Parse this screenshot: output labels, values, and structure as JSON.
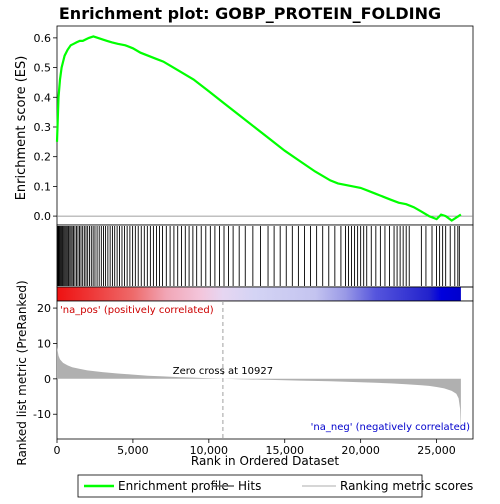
{
  "chart_data": {
    "type": "line",
    "title": "Enrichment plot: GOBP_PROTEIN_FOLDING",
    "es_panel": {
      "ylabel": "Enrichment score (ES)",
      "ylim": [
        -0.03,
        0.64
      ],
      "yticks": [
        0.0,
        0.1,
        0.2,
        0.3,
        0.4,
        0.5,
        0.6
      ],
      "ytick_labels": [
        "0.0",
        "0.1",
        "0.2",
        "0.3",
        "0.4",
        "0.5",
        "0.6"
      ],
      "series": [
        {
          "name": "Enrichment profile",
          "color": "#00ff00",
          "x": [
            0,
            50,
            100,
            200,
            300,
            400,
            500,
            700,
            900,
            1100,
            1300,
            1500,
            1700,
            1900,
            2100,
            2400,
            2700,
            3000,
            3300,
            3600,
            4000,
            4500,
            5000,
            5500,
            6000,
            6500,
            7000,
            7500,
            8000,
            9000,
            10000,
            11000,
            12000,
            13000,
            14000,
            15000,
            16000,
            17000,
            18000,
            18500,
            19000,
            19500,
            20000,
            20500,
            21000,
            21500,
            22000,
            22500,
            23000,
            23500,
            24000,
            24500,
            25000,
            25300,
            25600,
            26000,
            26300,
            26600
          ],
          "y": [
            0.25,
            0.33,
            0.4,
            0.46,
            0.5,
            0.52,
            0.54,
            0.56,
            0.575,
            0.58,
            0.585,
            0.59,
            0.59,
            0.595,
            0.6,
            0.605,
            0.6,
            0.595,
            0.59,
            0.585,
            0.58,
            0.575,
            0.565,
            0.55,
            0.54,
            0.53,
            0.52,
            0.505,
            0.49,
            0.46,
            0.42,
            0.38,
            0.34,
            0.3,
            0.26,
            0.22,
            0.185,
            0.15,
            0.12,
            0.11,
            0.105,
            0.1,
            0.095,
            0.085,
            0.075,
            0.065,
            0.055,
            0.045,
            0.04,
            0.03,
            0.015,
            0.0,
            -0.01,
            0.005,
            0.0,
            -0.015,
            -0.005,
            0.005
          ]
        }
      ]
    },
    "hits_panel": {
      "hit_color": "#000000",
      "hit_positions": [
        40,
        80,
        120,
        170,
        220,
        280,
        340,
        400,
        470,
        540,
        610,
        680,
        760,
        840,
        920,
        1000,
        1090,
        1180,
        1280,
        1380,
        1480,
        1580,
        1690,
        1800,
        1910,
        2020,
        2140,
        2260,
        2380,
        2500,
        2640,
        2780,
        2920,
        3060,
        3200,
        3350,
        3500,
        3650,
        3800,
        3960,
        4120,
        4280,
        4450,
        4620,
        4800,
        4980,
        5160,
        5350,
        5550,
        5750,
        5950,
        6150,
        6350,
        6550,
        6750,
        6950,
        7200,
        7450,
        7700,
        7950,
        8200,
        8450,
        8700,
        8950,
        9200,
        9500,
        9800,
        10100,
        10400,
        10700,
        11000,
        11300,
        11600,
        12000,
        12400,
        12900,
        13400,
        13900,
        14300,
        14700,
        15100,
        15500,
        15900,
        16300,
        16700,
        17100,
        17500,
        17900,
        18300,
        18700,
        19000,
        19200,
        19400,
        19600,
        19800,
        20000,
        20200,
        20400,
        20700,
        21000,
        21300,
        21600,
        21900,
        22200,
        22400,
        22600,
        22800,
        23000,
        23200,
        24000,
        24300,
        24700,
        25000,
        25200,
        25400,
        25600,
        25900,
        26200,
        26400,
        26500
      ]
    },
    "rank_panel": {
      "ylabel": "Ranked list metric (PreRanked)",
      "ylim": [
        -17,
        22
      ],
      "yticks": [
        -10,
        0,
        10,
        20
      ],
      "ytick_labels": [
        "-10",
        "0",
        "10",
        "20"
      ],
      "fill_color": "#b0b0b0",
      "x": [
        0,
        100,
        200,
        400,
        700,
        1000,
        1500,
        2000,
        3000,
        4000,
        5000,
        6000,
        7000,
        8000,
        9000,
        10000,
        10927,
        12000,
        14000,
        16000,
        18000,
        19000,
        20000,
        21000,
        22000,
        23000,
        24000,
        24500,
        25000,
        25500,
        26000,
        26300,
        26450,
        26550,
        26600
      ],
      "y": [
        9.0,
        6.5,
        5.5,
        4.5,
        3.8,
        3.3,
        2.8,
        2.4,
        1.9,
        1.5,
        1.2,
        0.9,
        0.7,
        0.5,
        0.35,
        0.15,
        0.0,
        -0.1,
        -0.3,
        -0.5,
        -0.7,
        -0.8,
        -0.95,
        -1.1,
        -1.3,
        -1.5,
        -1.8,
        -2.0,
        -2.3,
        -2.7,
        -3.4,
        -4.2,
        -5.5,
        -8.5,
        -15.5
      ],
      "zero_cross_label": "Zero cross at 10927",
      "zero_cross": 10927,
      "pos_label": "'na_pos' (positively correlated)",
      "neg_label": "'na_neg' (negatively correlated)",
      "pos_color": "#cc0000",
      "neg_color": "#0000cc"
    },
    "heat_bar": {
      "stops": [
        {
          "x": 0,
          "color": "#ee1111"
        },
        {
          "x": 2000,
          "color": "#ee3333"
        },
        {
          "x": 5000,
          "color": "#ee6a6a"
        },
        {
          "x": 7200,
          "color": "#f1a6b6"
        },
        {
          "x": 9500,
          "color": "#f3c6dc"
        },
        {
          "x": 10927,
          "color": "#e6d6f2"
        },
        {
          "x": 13000,
          "color": "#d4d4f4"
        },
        {
          "x": 17000,
          "color": "#c4c4f0"
        },
        {
          "x": 19000,
          "color": "#9999e6"
        },
        {
          "x": 21000,
          "color": "#5555dd"
        },
        {
          "x": 24500,
          "color": "#2222cc"
        },
        {
          "x": 25300,
          "color": "#0000dd"
        },
        {
          "x": 26600,
          "color": "#0000cc"
        }
      ]
    },
    "x_axis": {
      "label": "Rank in Ordered Dataset",
      "xlim": [
        0,
        27400
      ],
      "ticks": [
        0,
        5000,
        10000,
        15000,
        20000,
        25000
      ],
      "tick_labels": [
        "0",
        "5,000",
        "10,000",
        "15,000",
        "20,000",
        "25,000"
      ]
    },
    "legend": {
      "placement": "bottom",
      "entries": [
        {
          "label": "Enrichment profile",
          "color": "#00ff00"
        },
        {
          "label": "Hits",
          "color": "#606060"
        },
        {
          "label": "Ranking metric scores",
          "color": "#c8c8c8"
        }
      ]
    }
  }
}
